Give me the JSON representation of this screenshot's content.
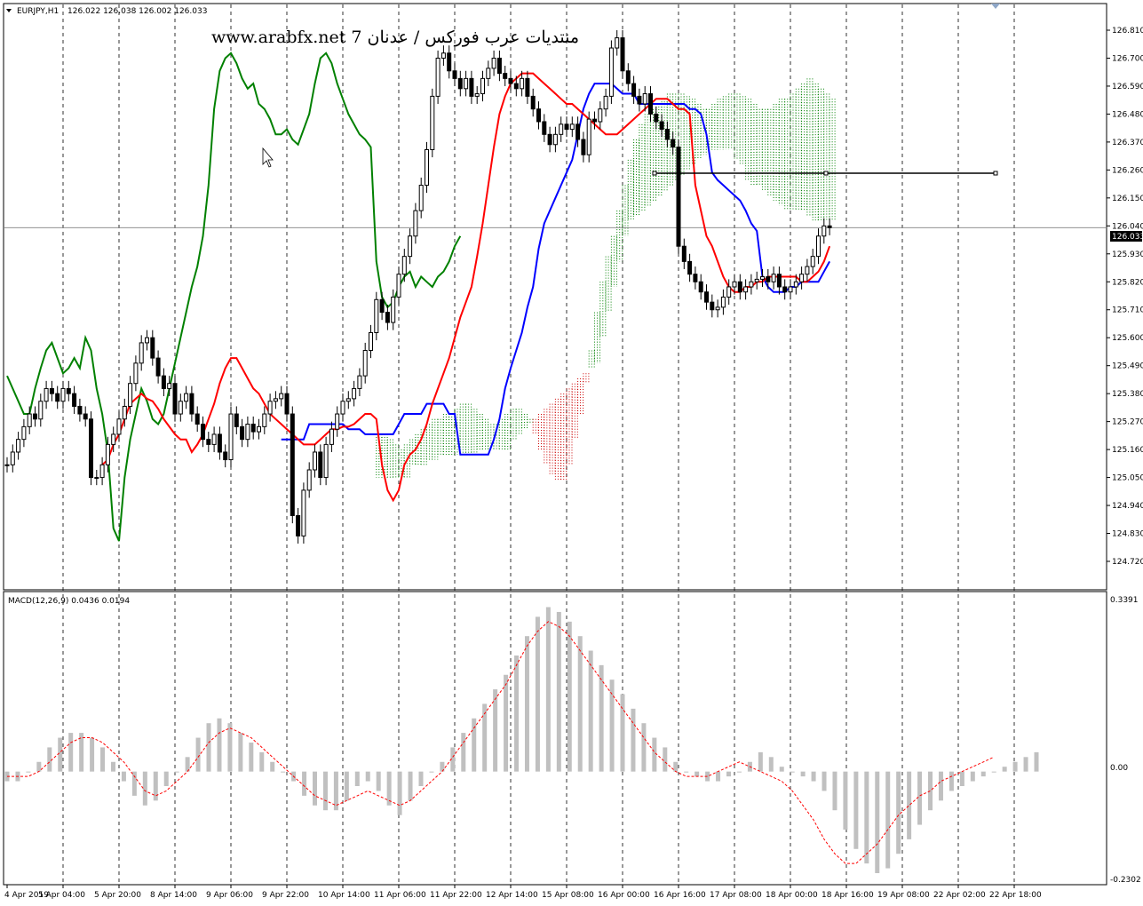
{
  "header": {
    "symbol": "EURJPY,H1",
    "ohlc": "126.022 126.038 126.002 126.033"
  },
  "watermark": "www.arabfx.net 7 منتديات عرب فوركس / عدنان",
  "current_price_label": "126.033",
  "macd": {
    "label": "MACD(12,26,9) 0.0436 0.0194",
    "scale_top": "0.3391",
    "scale_zero": "0.00",
    "scale_bottom": "-0.2302"
  },
  "colors": {
    "bull_candle": "#000000",
    "tenkan": "#ff0000",
    "kijun": "#0000ff",
    "chikou": "#008000",
    "kumo_bull": "#008000",
    "kumo_bear": "#cc0000",
    "macd_hist": "#c0c0c0",
    "macd_signal": "#ff0000",
    "price_line": "#808080"
  },
  "chart_data": [
    {
      "type": "line",
      "symbol": "EURJPY",
      "timeframe": "H1",
      "indicators": [
        "Ichimoku Kinko Hyo",
        "Candlesticks"
      ],
      "y_ticks": [
        "126.810",
        "126.700",
        "126.590",
        "126.480",
        "126.370",
        "126.260",
        "126.150",
        "126.040",
        "125.930",
        "125.820",
        "125.710",
        "125.600",
        "125.490",
        "125.380",
        "125.270",
        "125.160",
        "125.050",
        "124.940",
        "124.830",
        "124.720"
      ],
      "ylim": [
        124.72,
        126.81
      ],
      "x_ticks": [
        "4 Apr 2019",
        "5 Apr 04:00",
        "5 Apr 20:00",
        "8 Apr 14:00",
        "9 Apr 06:00",
        "9 Apr 22:00",
        "10 Apr 14:00",
        "11 Apr 06:00",
        "11 Apr 22:00",
        "12 Apr 14:00",
        "15 Apr 08:00",
        "16 Apr 00:00",
        "16 Apr 16:00",
        "17 Apr 08:00",
        "18 Apr 00:00",
        "18 Apr 16:00",
        "19 Apr 08:00",
        "22 Apr 02:00",
        "22 Apr 18:00"
      ],
      "x_tick_index": [
        0,
        10,
        20,
        30,
        40,
        50,
        60,
        70,
        80,
        90,
        100,
        110,
        120,
        130,
        140,
        150,
        160,
        170,
        180
      ],
      "close": [
        125.1,
        125.15,
        125.2,
        125.25,
        125.3,
        125.28,
        125.35,
        125.4,
        125.38,
        125.35,
        125.4,
        125.38,
        125.33,
        125.3,
        125.28,
        125.05,
        125.05,
        125.1,
        125.18,
        125.22,
        125.28,
        125.33,
        125.42,
        125.5,
        125.58,
        125.6,
        125.52,
        125.45,
        125.4,
        125.42,
        125.3,
        125.35,
        125.38,
        125.3,
        125.26,
        125.2,
        125.18,
        125.22,
        125.15,
        125.12,
        125.3,
        125.25,
        125.2,
        125.26,
        125.23,
        125.25,
        125.3,
        125.35,
        125.36,
        125.38,
        125.3,
        124.9,
        124.82,
        125.0,
        125.08,
        125.15,
        125.05,
        125.18,
        125.24,
        125.3,
        125.35,
        125.36,
        125.4,
        125.45,
        125.55,
        125.62,
        125.75,
        125.7,
        125.66,
        125.76,
        125.85,
        125.92,
        126.0,
        126.1,
        126.2,
        126.34,
        126.55,
        126.7,
        126.72,
        126.65,
        126.62,
        126.58,
        126.62,
        126.55,
        126.56,
        126.62,
        126.66,
        126.7,
        126.64,
        126.62,
        126.6,
        126.58,
        126.62,
        126.55,
        126.5,
        126.45,
        126.4,
        126.36,
        126.4,
        126.44,
        126.42,
        126.44,
        126.38,
        126.32,
        126.46,
        126.45,
        126.5,
        126.55,
        126.74,
        126.78,
        126.65,
        126.6,
        126.55,
        126.52,
        126.56,
        126.48,
        126.45,
        126.42,
        126.38,
        126.35,
        125.96,
        125.9,
        125.85,
        125.82,
        125.78,
        125.74,
        125.71,
        125.72,
        125.76,
        125.8,
        125.82,
        125.78,
        125.8,
        125.82,
        125.83,
        125.84,
        125.82,
        125.85,
        125.8,
        125.78,
        125.8,
        125.82,
        125.85,
        125.88,
        125.92,
        126.0,
        126.04,
        126.033
      ],
      "tenkan": [
        125.1,
        125.12,
        125.18,
        125.22,
        125.28,
        125.34,
        125.36,
        125.38,
        125.36,
        125.35,
        125.32,
        125.28,
        125.25,
        125.22,
        125.2,
        125.2,
        125.15,
        125.18,
        125.22,
        125.28,
        125.34,
        125.42,
        125.48,
        125.52,
        125.52,
        125.48,
        125.44,
        125.4,
        125.38,
        125.34,
        125.3,
        125.28,
        125.26,
        125.24,
        125.22,
        125.2,
        125.18,
        125.18,
        125.18,
        125.2,
        125.22,
        125.24,
        125.24,
        125.25,
        125.25,
        125.26,
        125.28,
        125.3,
        125.3,
        125.28,
        125.1,
        125.0,
        124.96,
        125.0,
        125.1,
        125.14,
        125.16,
        125.2,
        125.26,
        125.34,
        125.4,
        125.46,
        125.52,
        125.6,
        125.68,
        125.74,
        125.8,
        125.92,
        126.05,
        126.2,
        126.35,
        126.48,
        126.55,
        126.6,
        126.62,
        126.64,
        126.64,
        126.64,
        126.62,
        126.6,
        126.58,
        126.56,
        126.54,
        126.52,
        126.52,
        126.5,
        126.48,
        126.46,
        126.44,
        126.42,
        126.4,
        126.4,
        126.4,
        126.42,
        126.44,
        126.46,
        126.48,
        126.5,
        126.52,
        126.54,
        126.54,
        126.54,
        126.52,
        126.5,
        126.5,
        126.48,
        126.2,
        126.1,
        126.0,
        125.96,
        125.9,
        125.84,
        125.8,
        125.78,
        125.78,
        125.8,
        125.8,
        125.82,
        125.82,
        125.84,
        125.84,
        125.84,
        125.84,
        125.84,
        125.84,
        125.82,
        125.82,
        125.84,
        125.86,
        125.9,
        125.96
      ],
      "kijun": [
        125.2,
        125.2,
        125.2,
        125.2,
        125.2,
        125.26,
        125.26,
        125.26,
        125.26,
        125.26,
        125.26,
        125.26,
        125.24,
        125.24,
        125.24,
        125.22,
        125.22,
        125.22,
        125.22,
        125.22,
        125.22,
        125.26,
        125.3,
        125.3,
        125.3,
        125.3,
        125.34,
        125.34,
        125.34,
        125.34,
        125.3,
        125.3,
        125.14,
        125.14,
        125.14,
        125.14,
        125.14,
        125.14,
        125.2,
        125.28,
        125.4,
        125.48,
        125.55,
        125.62,
        125.72,
        125.8,
        125.95,
        126.05,
        126.1,
        126.15,
        126.2,
        126.25,
        126.3,
        126.4,
        126.5,
        126.56,
        126.6,
        126.6,
        126.6,
        126.6,
        126.58,
        126.56,
        126.56,
        126.56,
        126.52,
        126.52,
        126.52,
        126.52,
        126.52,
        126.52,
        126.52,
        126.52,
        126.52,
        126.5,
        126.5,
        126.48,
        126.4,
        126.25,
        126.22,
        126.2,
        126.18,
        126.16,
        126.14,
        126.1,
        126.05,
        126.02,
        125.84,
        125.8,
        125.78,
        125.78,
        125.78,
        125.8,
        125.8,
        125.82,
        125.82,
        125.82,
        125.82,
        125.86,
        125.9
      ],
      "chikou": [
        125.45,
        125.4,
        125.35,
        125.3,
        125.3,
        125.4,
        125.48,
        125.55,
        125.58,
        125.52,
        125.46,
        125.48,
        125.52,
        125.48,
        125.6,
        125.55,
        125.4,
        125.3,
        125.15,
        124.85,
        124.8,
        125.05,
        125.2,
        125.3,
        125.4,
        125.35,
        125.28,
        125.26,
        125.3,
        125.4,
        125.5,
        125.6,
        125.7,
        125.8,
        125.88,
        126.0,
        126.2,
        126.5,
        126.65,
        126.7,
        126.72,
        126.68,
        126.62,
        126.58,
        126.6,
        126.52,
        126.5,
        126.46,
        126.4,
        126.4,
        126.42,
        126.38,
        126.36,
        126.42,
        126.48,
        126.6,
        126.7,
        126.72,
        126.68,
        126.6,
        126.54,
        126.48,
        126.44,
        126.4,
        126.38,
        126.35,
        125.9,
        125.76,
        125.72,
        125.74,
        125.8,
        125.84,
        125.86,
        125.8,
        125.84,
        125.82,
        125.8,
        125.84,
        125.86,
        125.9,
        125.96,
        126.0
      ],
      "senkou_a": [
        125.22,
        125.22,
        125.2,
        125.18,
        125.16,
        125.18,
        125.2,
        125.22,
        125.24,
        125.26,
        125.28,
        125.28,
        125.3,
        125.3,
        125.32,
        125.34,
        125.34,
        125.32,
        125.3,
        125.28,
        125.26,
        125.26,
        125.28,
        125.3,
        125.32,
        125.32,
        125.3,
        125.28,
        125.22,
        125.16,
        125.1,
        125.06,
        125.04,
        125.04,
        125.1,
        125.2,
        125.3,
        125.42,
        125.55,
        125.7,
        125.82,
        125.92,
        126.0,
        126.1,
        126.2,
        126.3,
        126.38,
        126.44,
        126.48,
        126.5,
        126.52,
        126.54,
        126.56,
        126.56,
        126.56,
        126.55,
        126.54,
        126.52,
        126.5,
        126.5,
        126.52,
        126.54,
        126.55,
        126.56,
        126.56,
        126.55,
        126.54,
        126.52,
        126.5,
        126.5,
        126.5,
        126.52,
        126.54,
        126.54,
        126.56,
        126.58,
        126.6,
        126.62,
        126.6,
        126.58,
        126.56,
        126.54
      ],
      "senkou_b": [
        125.05,
        125.05,
        125.05,
        125.05,
        125.05,
        125.05,
        125.1,
        125.1,
        125.1,
        125.12,
        125.12,
        125.14,
        125.14,
        125.14,
        125.14,
        125.14,
        125.14,
        125.14,
        125.16,
        125.16,
        125.16,
        125.16,
        125.16,
        125.16,
        125.2,
        125.22,
        125.24,
        125.26,
        125.28,
        125.3,
        125.32,
        125.34,
        125.36,
        125.38,
        125.4,
        125.42,
        125.44,
        125.46,
        125.48,
        125.5,
        125.6,
        125.7,
        125.8,
        125.9,
        126.0,
        126.06,
        126.08,
        126.1,
        126.12,
        126.14,
        126.16,
        126.18,
        126.2,
        126.22,
        126.24,
        126.26,
        126.28,
        126.3,
        126.32,
        126.34,
        126.34,
        126.34,
        126.34,
        126.34,
        126.3,
        126.28,
        126.22,
        126.2,
        126.2,
        126.18,
        126.16,
        126.14,
        126.12,
        126.1,
        126.1,
        126.1,
        126.1,
        126.08,
        126.06,
        126.06,
        126.06,
        126.06
      ]
    },
    {
      "type": "bar",
      "indicator": "MACD",
      "params": "12,26,9",
      "macd_value": 0.0436,
      "signal_value": 0.0194,
      "ylim": [
        -0.2302,
        0.3391
      ],
      "y_ticks": [
        "0.3391",
        "0.00",
        "-0.2302"
      ],
      "histogram": [
        -0.02,
        -0.02,
        0.0,
        0.02,
        0.05,
        0.07,
        0.08,
        0.08,
        0.07,
        0.05,
        0.02,
        -0.02,
        -0.05,
        -0.07,
        -0.06,
        -0.03,
        0.0,
        0.03,
        0.07,
        0.1,
        0.11,
        0.1,
        0.08,
        0.06,
        0.04,
        0.02,
        0.0,
        -0.02,
        -0.05,
        -0.07,
        -0.08,
        -0.08,
        -0.06,
        -0.03,
        -0.02,
        -0.04,
        -0.07,
        -0.09,
        -0.06,
        -0.03,
        0.0,
        0.02,
        0.05,
        0.08,
        0.11,
        0.14,
        0.17,
        0.2,
        0.24,
        0.28,
        0.32,
        0.34,
        0.33,
        0.31,
        0.28,
        0.25,
        0.22,
        0.19,
        0.16,
        0.13,
        0.1,
        0.07,
        0.05,
        0.02,
        0.0,
        -0.01,
        -0.02,
        -0.02,
        -0.01,
        0.0,
        0.02,
        0.04,
        0.03,
        0.01,
        0.0,
        -0.01,
        -0.02,
        -0.04,
        -0.08,
        -0.12,
        -0.16,
        -0.19,
        -0.21,
        -0.2,
        -0.17,
        -0.14,
        -0.11,
        -0.08,
        -0.06,
        -0.04,
        -0.03,
        -0.02,
        -0.01,
        0.0,
        0.01,
        0.02,
        0.03,
        0.04
      ],
      "signal": [
        -0.01,
        -0.01,
        -0.01,
        0.0,
        0.02,
        0.04,
        0.06,
        0.07,
        0.07,
        0.06,
        0.04,
        0.02,
        -0.01,
        -0.04,
        -0.05,
        -0.04,
        -0.02,
        0.0,
        0.03,
        0.06,
        0.08,
        0.09,
        0.08,
        0.07,
        0.05,
        0.03,
        0.01,
        -0.01,
        -0.03,
        -0.05,
        -0.06,
        -0.07,
        -0.06,
        -0.05,
        -0.04,
        -0.05,
        -0.06,
        -0.07,
        -0.06,
        -0.04,
        -0.02,
        0.0,
        0.03,
        0.06,
        0.09,
        0.12,
        0.15,
        0.18,
        0.22,
        0.26,
        0.29,
        0.31,
        0.3,
        0.28,
        0.25,
        0.22,
        0.19,
        0.16,
        0.13,
        0.1,
        0.07,
        0.04,
        0.02,
        0.0,
        -0.01,
        -0.01,
        -0.01,
        0.0,
        0.01,
        0.02,
        0.01,
        0.0,
        -0.01,
        -0.02,
        -0.04,
        -0.07,
        -0.1,
        -0.14,
        -0.17,
        -0.19,
        -0.19,
        -0.17,
        -0.15,
        -0.12,
        -0.09,
        -0.07,
        -0.05,
        -0.04,
        -0.02,
        -0.01,
        0.0,
        0.01,
        0.02,
        0.03
      ]
    }
  ]
}
